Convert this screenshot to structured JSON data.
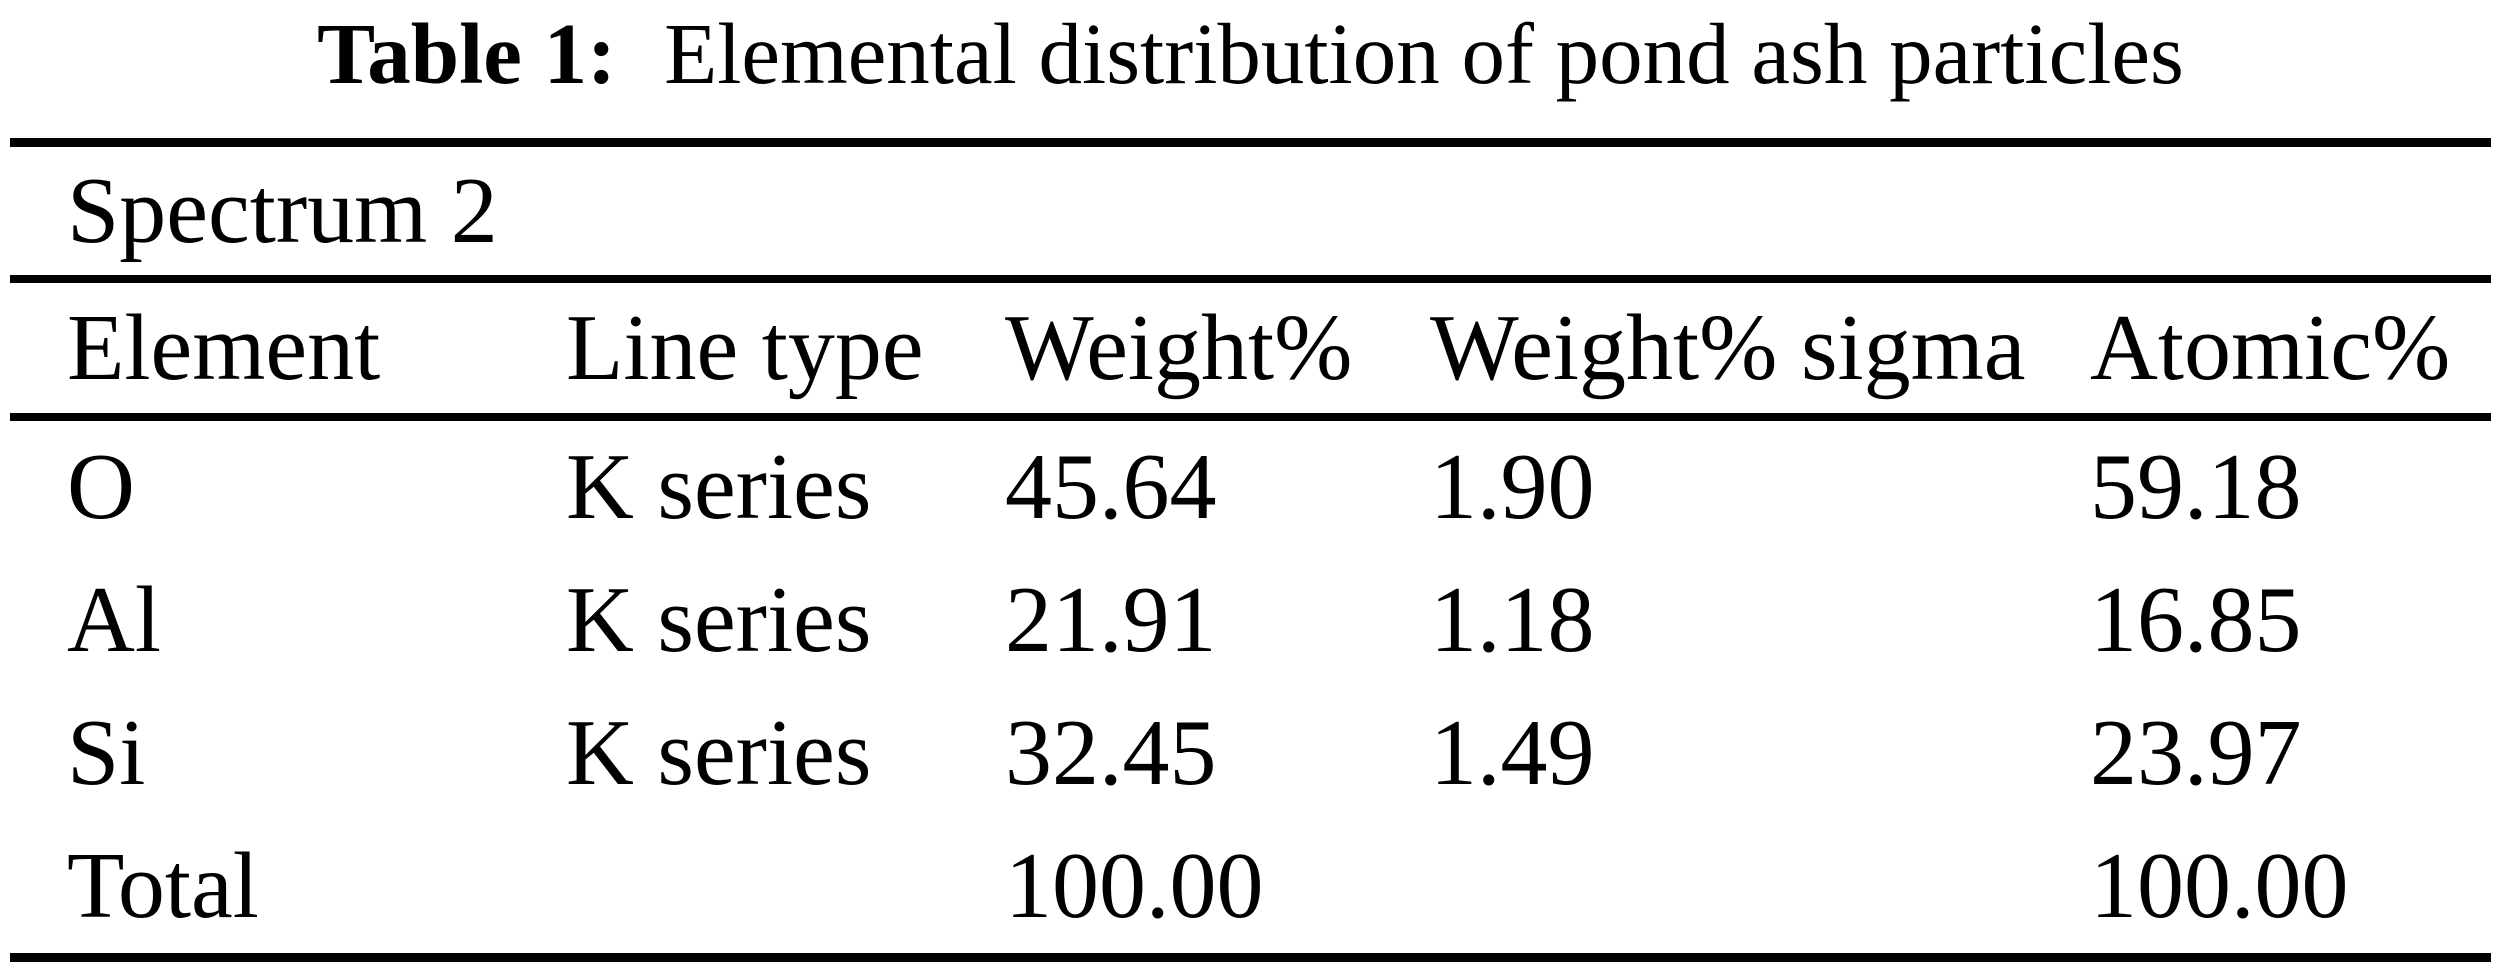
{
  "caption": {
    "label": "Table 1:",
    "text": "Elemental distribution of pond ash particles"
  },
  "table": {
    "spectrum_label": "Spectrum 2",
    "columns": {
      "element": "Element",
      "line_type": "Line type",
      "weight_pct": "Weight%",
      "weight_pct_sigma": "Weight% sigma",
      "atomic_pct": "Atomic%"
    },
    "rows": [
      {
        "element": "O",
        "line_type": "K series",
        "weight_pct": "45.64",
        "weight_pct_sigma": "1.90",
        "atomic_pct": "59.18"
      },
      {
        "element": "Al",
        "line_type": "K series",
        "weight_pct": "21.91",
        "weight_pct_sigma": "1.18",
        "atomic_pct": "16.85"
      },
      {
        "element": "Si",
        "line_type": "K series",
        "weight_pct": "32.45",
        "weight_pct_sigma": "1.49",
        "atomic_pct": "23.97"
      },
      {
        "element": "Total",
        "line_type": "",
        "weight_pct": "100.00",
        "weight_pct_sigma": "",
        "atomic_pct": "100.00"
      }
    ]
  },
  "chart_data": {
    "type": "table",
    "title": "Table 1: Elemental distribution of pond ash particles",
    "subtitle": "Spectrum 2",
    "columns": [
      "Element",
      "Line type",
      "Weight%",
      "Weight% sigma",
      "Atomic%"
    ],
    "rows": [
      [
        "O",
        "K series",
        45.64,
        1.9,
        59.18
      ],
      [
        "Al",
        "K series",
        21.91,
        1.18,
        16.85
      ],
      [
        "Si",
        "K series",
        32.45,
        1.49,
        23.97
      ],
      [
        "Total",
        "",
        100.0,
        "",
        100.0
      ]
    ]
  },
  "colors": {
    "background": "#ffffff",
    "text": "#000000",
    "rule": "#000000"
  }
}
